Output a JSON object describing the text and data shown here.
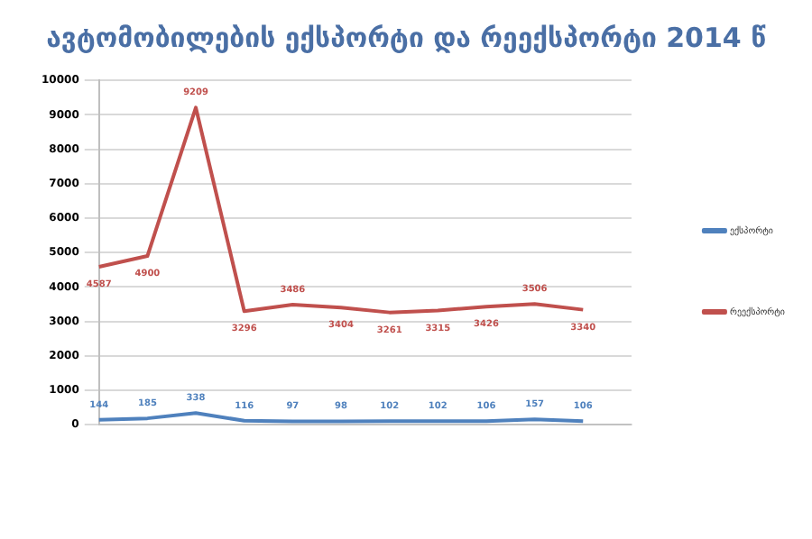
{
  "chart_data": {
    "type": "line",
    "title": "ავტომობილების  ექსპორტი და რეექსპორტი 2014 წ",
    "categories": [
      null,
      null,
      null,
      null,
      null,
      null,
      null,
      null,
      null,
      null,
      null,
      null
    ],
    "series": [
      {
        "name": "ექსპორტი",
        "color": "#4f81bd",
        "values": [
          144,
          185,
          338,
          116,
          97,
          98,
          102,
          102,
          106,
          157,
          106,
          null
        ]
      },
      {
        "name": "რეექსპორტი",
        "color": "#c0504d",
        "values": [
          4587,
          4900,
          9209,
          3296,
          3486,
          3404,
          3261,
          3315,
          3426,
          3506,
          3340,
          null
        ]
      }
    ],
    "ylim": [
      0,
      10000
    ],
    "yticks": [
      0,
      1000,
      2000,
      3000,
      4000,
      5000,
      6000,
      7000,
      8000,
      9000,
      10000
    ],
    "grid": "y",
    "legend": "right",
    "data_labels": true,
    "marker": "none",
    "line_style": "solid"
  }
}
